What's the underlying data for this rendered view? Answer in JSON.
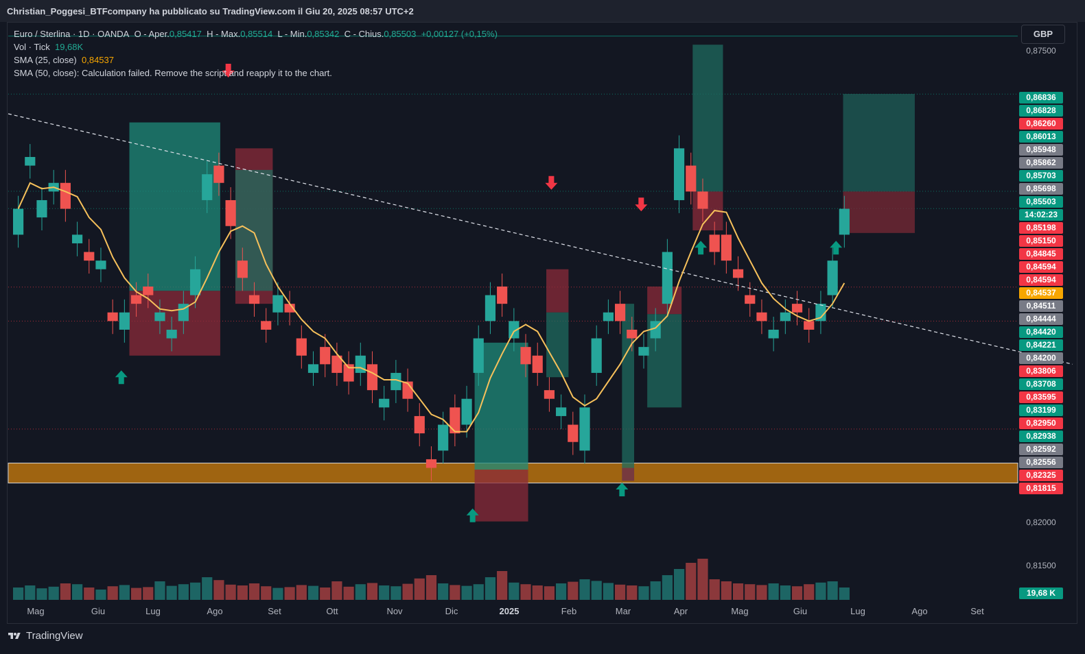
{
  "header": {
    "published": "Christian_Poggesi_BTFcompany ha pubblicato su TradingView.com il Giu 20, 2025 08:57 UTC+2"
  },
  "legend": {
    "symbol": "Euro / Sterlina · 1D · OANDA",
    "o_label": "O - Aper.",
    "o_val": "0,85417",
    "h_label": "H - Max.",
    "h_val": "0,85514",
    "l_label": "L - Min.",
    "l_val": "0,85342",
    "c_label": "C - Chius.",
    "c_val": "0,85503",
    "change": "+0,00127 (+0,15%)",
    "vol_label": "Vol · Tick",
    "vol_val": "19,68K",
    "sma25_label": "SMA (25, close)",
    "sma25_val": "0,84537",
    "sma50_text": "SMA (50, close): Calculation failed. Remove the script and reapply it to the chart."
  },
  "currency_button": "GBP",
  "footer": {
    "brand": "TradingView"
  },
  "chart_data": {
    "type": "candlestick",
    "symbol": "EUR/GBP",
    "timeframe": "1D",
    "ylim": [
      0.8125,
      0.876
    ],
    "x_ticks": [
      "Mag",
      "Giu",
      "Lug",
      "Ago",
      "Set",
      "Ott",
      "Nov",
      "Dic",
      "2025",
      "Feb",
      "Mar",
      "Apr",
      "Mag",
      "Giu",
      "Lug",
      "Ago",
      "Set"
    ],
    "y_ticks": [
      "0,87500",
      "0,82000",
      "0,81500"
    ],
    "price_labels": [
      {
        "text": "0,86836",
        "value": 0.86836,
        "color": "#089981"
      },
      {
        "text": "0,86828",
        "value": 0.86828,
        "color": "#089981"
      },
      {
        "text": "0,86260",
        "value": 0.8626,
        "color": "#f23645"
      },
      {
        "text": "0,86013",
        "value": 0.86013,
        "color": "#089981"
      },
      {
        "text": "0,85948",
        "value": 0.85948,
        "color": "#787b86"
      },
      {
        "text": "0,85862",
        "value": 0.85862,
        "color": "#787b86"
      },
      {
        "text": "0,85703",
        "value": 0.85703,
        "color": "#089981"
      },
      {
        "text": "0,85698",
        "value": 0.85698,
        "color": "#787b86"
      },
      {
        "text": "0,85503",
        "value": 0.85503,
        "color": "#089981"
      },
      {
        "text": "14:02:23",
        "value": 0.854,
        "color": "#089981"
      },
      {
        "text": "0,85198",
        "value": 0.85198,
        "color": "#f23645"
      },
      {
        "text": "0,85150",
        "value": 0.8515,
        "color": "#f23645"
      },
      {
        "text": "0,84845",
        "value": 0.84845,
        "color": "#f23645"
      },
      {
        "text": "0,84594",
        "value": 0.84594,
        "color": "#f23645"
      },
      {
        "text": "0,84594",
        "value": 0.84594,
        "color": "#f23645"
      },
      {
        "text": "0,84537",
        "value": 0.84537,
        "color": "#f7a600"
      },
      {
        "text": "0,84511",
        "value": 0.84511,
        "color": "#787b86"
      },
      {
        "text": "0,84444",
        "value": 0.84444,
        "color": "#787b86"
      },
      {
        "text": "0,84420",
        "value": 0.8442,
        "color": "#089981"
      },
      {
        "text": "0,84221",
        "value": 0.84221,
        "color": "#089981"
      },
      {
        "text": "0,84200",
        "value": 0.842,
        "color": "#787b86"
      },
      {
        "text": "0,83806",
        "value": 0.83806,
        "color": "#f23645"
      },
      {
        "text": "0,83708",
        "value": 0.83708,
        "color": "#089981"
      },
      {
        "text": "0,83595",
        "value": 0.83595,
        "color": "#f23645"
      },
      {
        "text": "0,83199",
        "value": 0.83199,
        "color": "#089981"
      },
      {
        "text": "0,82950",
        "value": 0.8295,
        "color": "#f23645"
      },
      {
        "text": "0,82938",
        "value": 0.82938,
        "color": "#089981"
      },
      {
        "text": "0,82592",
        "value": 0.82592,
        "color": "#787b86"
      },
      {
        "text": "0,82556",
        "value": 0.82556,
        "color": "#787b86"
      },
      {
        "text": "0,82325",
        "value": 0.82325,
        "color": "#f23645"
      },
      {
        "text": "0,81815",
        "value": 0.81815,
        "color": "#f23645"
      }
    ],
    "volume_label": "19,68 K",
    "support_zone": [
      0.82325,
      0.82556
    ],
    "price_path": [
      [
        0.852,
        0.855
      ],
      [
        0.86,
        0.861
      ],
      [
        0.854,
        0.856
      ],
      [
        0.857,
        0.858
      ],
      [
        0.858,
        0.855
      ],
      [
        0.851,
        0.852
      ],
      [
        0.85,
        0.849
      ],
      [
        0.848,
        0.849
      ],
      [
        0.843,
        0.842
      ],
      [
        0.841,
        0.843
      ],
      [
        0.845,
        0.844
      ],
      [
        0.846,
        0.845
      ],
      [
        0.842,
        0.843
      ],
      [
        0.84,
        0.841
      ],
      [
        0.842,
        0.844
      ],
      [
        0.845,
        0.848
      ],
      [
        0.856,
        0.859
      ],
      [
        0.86,
        0.858
      ],
      [
        0.856,
        0.853
      ],
      [
        0.849,
        0.847
      ],
      [
        0.845,
        0.844
      ],
      [
        0.842,
        0.841
      ],
      [
        0.843,
        0.845
      ],
      [
        0.844,
        0.843
      ],
      [
        0.84,
        0.838
      ],
      [
        0.836,
        0.837
      ],
      [
        0.839,
        0.837
      ],
      [
        0.838,
        0.836
      ],
      [
        0.837,
        0.835
      ],
      [
        0.836,
        0.838
      ],
      [
        0.837,
        0.834
      ],
      [
        0.832,
        0.833
      ],
      [
        0.834,
        0.836
      ],
      [
        0.835,
        0.833
      ],
      [
        0.831,
        0.829
      ],
      [
        0.826,
        0.825
      ],
      [
        0.827,
        0.83
      ],
      [
        0.832,
        0.829
      ],
      [
        0.83,
        0.833
      ],
      [
        0.836,
        0.84
      ],
      [
        0.842,
        0.845
      ],
      [
        0.846,
        0.844
      ],
      [
        0.84,
        0.842
      ],
      [
        0.839,
        0.837
      ],
      [
        0.838,
        0.836
      ],
      [
        0.834,
        0.833
      ],
      [
        0.831,
        0.832
      ],
      [
        0.83,
        0.828
      ],
      [
        0.827,
        0.832
      ],
      [
        0.836,
        0.84
      ],
      [
        0.842,
        0.843
      ],
      [
        0.844,
        0.842
      ],
      [
        0.841,
        0.84
      ],
      [
        0.838,
        0.839
      ],
      [
        0.84,
        0.842
      ],
      [
        0.844,
        0.85
      ],
      [
        0.856,
        0.862
      ],
      [
        0.86,
        0.857
      ],
      [
        0.857,
        0.855
      ],
      [
        0.852,
        0.85
      ],
      [
        0.852,
        0.849
      ],
      [
        0.848,
        0.847
      ],
      [
        0.845,
        0.844
      ],
      [
        0.843,
        0.842
      ],
      [
        0.84,
        0.841
      ],
      [
        0.842,
        0.843
      ],
      [
        0.844,
        0.843
      ],
      [
        0.842,
        0.841
      ],
      [
        0.842,
        0.844
      ],
      [
        0.845,
        0.849
      ],
      [
        0.852,
        0.855
      ]
    ],
    "volumes": [
      0.3,
      0.35,
      0.28,
      0.32,
      0.4,
      0.38,
      0.3,
      0.25,
      0.33,
      0.36,
      0.29,
      0.31,
      0.45,
      0.34,
      0.38,
      0.42,
      0.55,
      0.48,
      0.37,
      0.35,
      0.4,
      0.33,
      0.29,
      0.31,
      0.36,
      0.34,
      0.3,
      0.45,
      0.32,
      0.38,
      0.41,
      0.35,
      0.33,
      0.39,
      0.52,
      0.6,
      0.4,
      0.36,
      0.34,
      0.38,
      0.55,
      0.7,
      0.42,
      0.38,
      0.35,
      0.33,
      0.4,
      0.44,
      0.5,
      0.46,
      0.41,
      0.37,
      0.35,
      0.33,
      0.45,
      0.6,
      0.75,
      0.9,
      1.0,
      0.5,
      0.45,
      0.4,
      0.38,
      0.36,
      0.4,
      0.35,
      0.33,
      0.38,
      0.42,
      0.45,
      0.3
    ]
  }
}
